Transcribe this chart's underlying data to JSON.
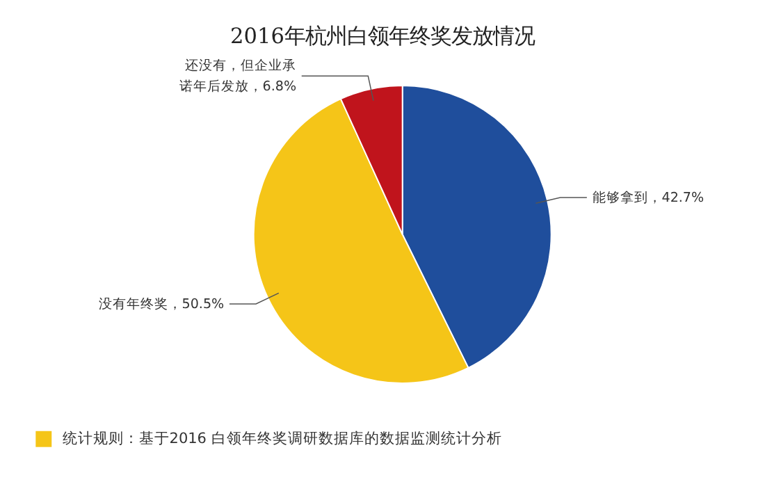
{
  "chart_data": {
    "type": "pie",
    "title": "2016年杭州白领年终奖发放情况",
    "categories": [
      "能够拿到",
      "没有年终奖",
      "还没有，但企业承诺年后发放"
    ],
    "values": [
      42.7,
      50.5,
      6.8
    ],
    "value_labels": [
      "42.7%",
      "50.5%",
      "6.8%"
    ],
    "colors": [
      "#1f4e9c",
      "#f5c518",
      "#c0141c"
    ],
    "annotations": [
      "统计规则：基于2016 白领年终奖调研数据库的数据监测统计分析"
    ]
  }
}
